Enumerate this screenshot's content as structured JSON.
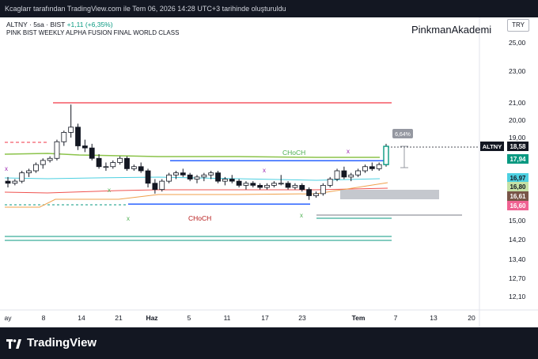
{
  "caption": "Kcaglarr tarafından TradingView.com ile Tem 06, 2026 14:28 UTC+3 tarihinde oluşturuldu",
  "symbol_line": {
    "symbol": "ALTNY",
    "interval": "5sa",
    "exchange": "BIST",
    "change": "+1,11 (+6,35%)"
  },
  "indicator_title": "PINK BIST WEEKLY ALPHA FUSION FINAL WORLD CLASS",
  "watermark": "PinkmanAkademi",
  "currency": "TRY",
  "brand": "TradingView",
  "chart_data": {
    "type": "candlestick",
    "y_axis_ticks": [
      "25,00",
      "23,00",
      "21,00",
      "20,00",
      "19,00",
      "15,00",
      "14,20",
      "13,40",
      "12,70",
      "12,10"
    ],
    "x_axis_ticks": [
      "ay",
      "8",
      "14",
      "21",
      "Haz",
      "5",
      "11",
      "17",
      "23",
      "Tem",
      "7",
      "13",
      "20"
    ],
    "price_labels": [
      {
        "text": "ALTNY",
        "value": "18,58",
        "bg": "#131722",
        "color": "#ffffff"
      },
      {
        "text": "",
        "value": "17,94",
        "bg": "#089981",
        "color": "#ffffff"
      },
      {
        "text": "",
        "value": "16,97",
        "bg": "#4dd0e1",
        "color": "#131722"
      },
      {
        "text": "",
        "value": "16,80",
        "bg": "#c5e1a5",
        "color": "#131722"
      },
      {
        "text": "",
        "value": "16,61",
        "bg": "#795548",
        "color": "#ffffff"
      },
      {
        "text": "",
        "value": "16,60",
        "bg": "#f06292",
        "color": "#ffffff"
      }
    ],
    "annotations": [
      "CHoCH",
      "CHoCH",
      "6,64%"
    ],
    "candles": [
      [
        16.9,
        17.1,
        16.6,
        16.8
      ],
      [
        16.8,
        17.0,
        16.7,
        16.9
      ],
      [
        16.9,
        17.4,
        16.8,
        17.3
      ],
      [
        17.3,
        17.5,
        17.1,
        17.4
      ],
      [
        17.4,
        17.8,
        17.3,
        17.7
      ],
      [
        17.7,
        18.0,
        17.5,
        17.9
      ],
      [
        17.9,
        18.1,
        17.8,
        18.0
      ],
      [
        18.0,
        18.9,
        17.9,
        18.8
      ],
      [
        18.8,
        19.4,
        18.6,
        19.3
      ],
      [
        19.3,
        20.9,
        19.0,
        19.6
      ],
      [
        19.6,
        19.8,
        18.4,
        18.6
      ],
      [
        18.6,
        18.9,
        18.3,
        18.5
      ],
      [
        18.5,
        18.7,
        17.9,
        18.0
      ],
      [
        18.0,
        18.2,
        17.5,
        17.6
      ],
      [
        17.6,
        17.8,
        17.4,
        17.6
      ],
      [
        17.6,
        17.9,
        17.5,
        17.8
      ],
      [
        17.8,
        18.1,
        17.7,
        18.0
      ],
      [
        18.0,
        18.1,
        17.4,
        17.5
      ],
      [
        17.5,
        17.7,
        17.4,
        17.6
      ],
      [
        17.6,
        17.8,
        17.3,
        17.4
      ],
      [
        17.4,
        17.5,
        16.6,
        16.8
      ],
      [
        16.8,
        17.0,
        16.3,
        16.5
      ],
      [
        16.5,
        17.0,
        16.4,
        16.9
      ],
      [
        16.9,
        17.3,
        16.8,
        17.2
      ],
      [
        17.2,
        17.4,
        17.0,
        17.3
      ],
      [
        17.3,
        17.5,
        17.1,
        17.2
      ],
      [
        17.2,
        17.3,
        16.9,
        17.0
      ],
      [
        17.0,
        17.2,
        16.8,
        17.1
      ],
      [
        17.1,
        17.3,
        16.9,
        17.2
      ],
      [
        17.2,
        17.4,
        17.0,
        17.3
      ],
      [
        17.3,
        17.4,
        16.8,
        16.9
      ],
      [
        16.9,
        17.1,
        16.7,
        17.0
      ],
      [
        17.0,
        17.2,
        16.8,
        16.9
      ],
      [
        16.9,
        17.0,
        16.6,
        16.7
      ],
      [
        16.7,
        16.9,
        16.5,
        16.8
      ],
      [
        16.8,
        16.9,
        16.6,
        16.7
      ],
      [
        16.7,
        16.8,
        16.5,
        16.6
      ],
      [
        16.6,
        16.8,
        16.5,
        16.7
      ],
      [
        16.7,
        16.9,
        16.6,
        16.8
      ],
      [
        16.8,
        17.2,
        16.7,
        16.8
      ],
      [
        16.8,
        16.9,
        16.5,
        16.6
      ],
      [
        16.6,
        16.8,
        16.5,
        16.7
      ],
      [
        16.7,
        16.8,
        16.4,
        16.5
      ],
      [
        16.5,
        16.6,
        16.0,
        16.2
      ],
      [
        16.2,
        16.4,
        16.1,
        16.3
      ],
      [
        16.3,
        16.8,
        16.2,
        16.7
      ],
      [
        16.7,
        17.1,
        16.6,
        17.0
      ],
      [
        17.0,
        17.5,
        16.9,
        17.4
      ],
      [
        17.4,
        17.6,
        17.0,
        17.1
      ],
      [
        17.1,
        17.3,
        16.9,
        17.2
      ],
      [
        17.2,
        17.5,
        17.1,
        17.4
      ],
      [
        17.4,
        17.7,
        17.3,
        17.6
      ],
      [
        17.6,
        17.8,
        17.4,
        17.5
      ],
      [
        17.5,
        17.8,
        17.4,
        17.7
      ],
      [
        17.7,
        18.7,
        17.6,
        18.58
      ]
    ],
    "levels": [
      {
        "name": "resistance",
        "value": 21.0,
        "color": "#f23645"
      },
      {
        "name": "choch-upper",
        "value": 17.96,
        "color": "#089981"
      },
      {
        "name": "choch-lower",
        "value": 16.1,
        "color": "#2962ff"
      },
      {
        "name": "support-1",
        "value": 15.02,
        "color": "#089981"
      },
      {
        "name": "support-2",
        "value": 14.3,
        "color": "#089981"
      },
      {
        "name": "support-3",
        "value": 14.1,
        "color": "#089981"
      }
    ]
  }
}
